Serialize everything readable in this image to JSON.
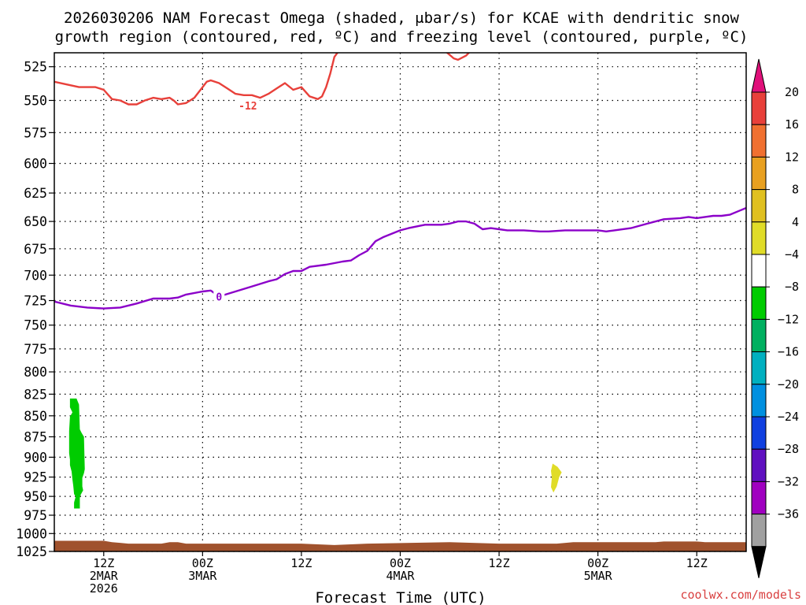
{
  "title": {
    "line1": "2026030206 NAM Forecast Omega (shaded, μbar/s) for KCAE with dendritic snow",
    "line2": "growth region (contoured, red, ºC) and freezing level (contoured, purple, ºC)"
  },
  "credit": "coolwx.com/models",
  "chart_data": {
    "type": "area",
    "title": "2026030206 NAM Forecast Omega (shaded, μbar/s) for KCAE with dendritic snow growth region (contoured, red, ºC) and freezing level (contoured, purple, ºC)",
    "xlabel": "Forecast Time (UTC)",
    "ylabel": "",
    "x_unit": "hours since 2026-03-02 06Z",
    "xlim": [
      0,
      84
    ],
    "ylim_hPa": [
      1025,
      515
    ],
    "y_scale": "log-pressure",
    "grid": true,
    "y_ticks": [
      525,
      550,
      575,
      600,
      625,
      650,
      675,
      700,
      725,
      750,
      775,
      800,
      825,
      850,
      875,
      900,
      925,
      950,
      975,
      1000,
      1025
    ],
    "x_ticks": [
      {
        "hour": 6,
        "lines": [
          "12Z",
          "2MAR",
          "2026"
        ]
      },
      {
        "hour": 18,
        "lines": [
          "00Z",
          "3MAR"
        ]
      },
      {
        "hour": 30,
        "lines": [
          "12Z"
        ]
      },
      {
        "hour": 42,
        "lines": [
          "00Z",
          "4MAR"
        ]
      },
      {
        "hour": 54,
        "lines": [
          "12Z"
        ]
      },
      {
        "hour": 66,
        "lines": [
          "00Z",
          "5MAR"
        ]
      },
      {
        "hour": 78,
        "lines": [
          "12Z"
        ]
      }
    ],
    "series": [
      {
        "name": "-12",
        "kind": "contour",
        "color": "#e8403a",
        "label": "-12",
        "label_at": [
          23.5,
          554
        ],
        "segments": [
          [
            [
              0,
              536
            ],
            [
              1.5,
              538
            ],
            [
              3,
              540
            ],
            [
              5,
              540
            ],
            [
              6,
              542
            ],
            [
              7,
              549
            ],
            [
              8,
              550
            ],
            [
              9,
              553
            ],
            [
              10,
              553
            ],
            [
              11,
              550
            ],
            [
              12,
              548
            ],
            [
              13,
              549
            ],
            [
              14,
              548
            ],
            [
              14.5,
              550
            ],
            [
              15,
              553
            ],
            [
              16,
              552
            ],
            [
              17,
              548
            ],
            [
              18,
              540
            ],
            [
              18.5,
              536
            ],
            [
              19,
              535
            ],
            [
              20,
              537
            ],
            [
              21,
              541
            ],
            [
              22,
              545
            ],
            [
              23,
              546
            ],
            [
              24,
              546
            ],
            [
              25,
              548
            ],
            [
              26,
              545
            ],
            [
              27,
              541
            ],
            [
              28,
              537
            ],
            [
              29,
              542
            ],
            [
              30,
              540
            ],
            [
              31,
              547
            ],
            [
              32,
              549
            ],
            [
              32.5,
              547
            ],
            [
              33,
              540
            ],
            [
              33.5,
              530
            ],
            [
              34,
              518
            ],
            [
              34.5,
              514
            ]
          ],
          [
            [
              47.5,
              514
            ],
            [
              48.5,
              519
            ],
            [
              49,
              520
            ],
            [
              50,
              517
            ],
            [
              50.5,
              514
            ]
          ]
        ]
      },
      {
        "name": "0",
        "kind": "contour",
        "color": "#8b00c9",
        "label": "0",
        "label_at": [
          20,
          721
        ],
        "segments": [
          [
            [
              0,
              726
            ],
            [
              2,
              730
            ],
            [
              4,
              732
            ],
            [
              6,
              733
            ],
            [
              8,
              732
            ],
            [
              10,
              728
            ],
            [
              12,
              723
            ],
            [
              14,
              723
            ],
            [
              15,
              722
            ],
            [
              16,
              719
            ],
            [
              18,
              716
            ],
            [
              19,
              715
            ],
            [
              20,
              721
            ],
            [
              22,
              716
            ],
            [
              24,
              711
            ],
            [
              26,
              706
            ],
            [
              27,
              704
            ],
            [
              28,
              699
            ],
            [
              29,
              696
            ],
            [
              30,
              696
            ],
            [
              31,
              692
            ],
            [
              33,
              690
            ],
            [
              35,
              687
            ],
            [
              36,
              686
            ],
            [
              37,
              681
            ],
            [
              38,
              677
            ],
            [
              39,
              668
            ],
            [
              40,
              664
            ],
            [
              42,
              658
            ],
            [
              43,
              656
            ],
            [
              45,
              653
            ],
            [
              47,
              653
            ],
            [
              48,
              652
            ],
            [
              49,
              650
            ],
            [
              50,
              650
            ],
            [
              51,
              652
            ],
            [
              52,
              657
            ],
            [
              53,
              656
            ],
            [
              55,
              658
            ],
            [
              57,
              658
            ],
            [
              59,
              659
            ],
            [
              60,
              659
            ],
            [
              62,
              658
            ],
            [
              64,
              658
            ],
            [
              66,
              658
            ],
            [
              67,
              659
            ],
            [
              68,
              658
            ],
            [
              70,
              656
            ],
            [
              72,
              652
            ],
            [
              74,
              648
            ],
            [
              76,
              647
            ],
            [
              77,
              646
            ],
            [
              78,
              647
            ],
            [
              79,
              646
            ],
            [
              80,
              645
            ],
            [
              81,
              645
            ],
            [
              82,
              644
            ],
            [
              83,
              641
            ],
            [
              84,
              638
            ]
          ]
        ]
      }
    ],
    "shaded_regions": [
      {
        "name": "omega -8 to -4",
        "color": "#00cc00",
        "polygon": [
          [
            1.9,
            830
          ],
          [
            2.7,
            830
          ],
          [
            3.0,
            837
          ],
          [
            3.1,
            866
          ],
          [
            3.3,
            870
          ],
          [
            3.6,
            875
          ],
          [
            3.7,
            915
          ],
          [
            3.6,
            920
          ],
          [
            3.4,
            926
          ],
          [
            3.4,
            937
          ],
          [
            3.5,
            942
          ],
          [
            3.2,
            948
          ],
          [
            3.1,
            952
          ],
          [
            3.1,
            966
          ],
          [
            2.4,
            966
          ],
          [
            2.4,
            958
          ],
          [
            2.6,
            950
          ],
          [
            2.4,
            947
          ],
          [
            2.3,
            936
          ],
          [
            2.2,
            928
          ],
          [
            2.1,
            918
          ],
          [
            1.9,
            910
          ],
          [
            1.9,
            903
          ],
          [
            1.8,
            895
          ],
          [
            1.8,
            868
          ],
          [
            1.9,
            851
          ],
          [
            2.2,
            846
          ],
          [
            1.9,
            840
          ]
        ]
      },
      {
        "name": "omega 4 to 8",
        "color": "#e0dc28",
        "polygon": [
          [
            60.5,
            908
          ],
          [
            61.1,
            912
          ],
          [
            61.6,
            919
          ],
          [
            61.3,
            925
          ],
          [
            61.0,
            937
          ],
          [
            60.6,
            945
          ],
          [
            60.3,
            938
          ],
          [
            60.4,
            926
          ],
          [
            60.3,
            917
          ]
        ]
      }
    ],
    "terrain": {
      "color": "#a0522d",
      "surface_pressure": [
        [
          0,
          1010
        ],
        [
          6,
          1010
        ],
        [
          7,
          1012
        ],
        [
          8,
          1013
        ],
        [
          9,
          1014
        ],
        [
          13,
          1014
        ],
        [
          14,
          1012
        ],
        [
          15,
          1012
        ],
        [
          16,
          1014
        ],
        [
          30,
          1014
        ],
        [
          32,
          1015
        ],
        [
          34,
          1016
        ],
        [
          36,
          1015
        ],
        [
          38,
          1014
        ],
        [
          48,
          1012
        ],
        [
          54,
          1014
        ],
        [
          61,
          1014
        ],
        [
          63,
          1012
        ],
        [
          73,
          1012
        ],
        [
          74,
          1011
        ],
        [
          78,
          1011
        ],
        [
          79,
          1012
        ],
        [
          84,
          1012
        ]
      ]
    },
    "colorbar": {
      "labels": [
        "20",
        "16",
        "12",
        "8",
        "4",
        "−4",
        "−8",
        "−12",
        "−16",
        "−20",
        "−24",
        "−28",
        "−32",
        "−36"
      ],
      "colors": [
        "#e8403a",
        "#f07030",
        "#e8a020",
        "#e0c020",
        "#e0dc28",
        "#ffffff",
        "#00cc00",
        "#00b060",
        "#00b0c0",
        "#0090e0",
        "#1040e0",
        "#6010c0",
        "#a000c0",
        "#a0a0a0"
      ],
      "top_color": "#e0107a",
      "bottom_color": "#000000"
    }
  }
}
